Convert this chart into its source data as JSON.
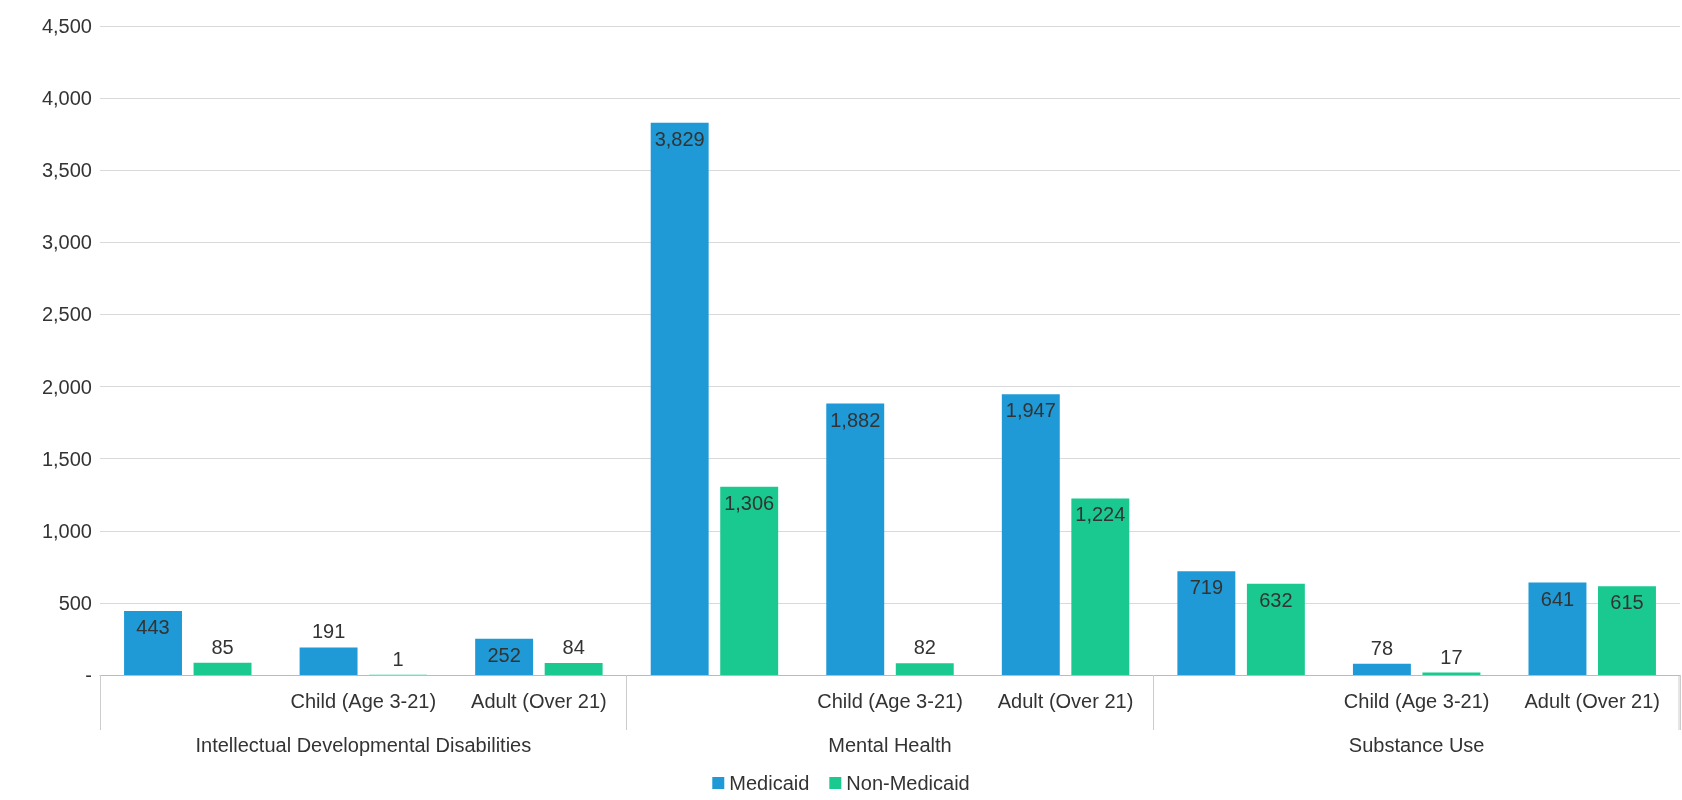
{
  "chart_data": {
    "type": "bar",
    "categories": [
      null,
      "Child (Age 3-21)",
      "Adult (Over 21)",
      null,
      "Child (Age 3-21)",
      "Adult (Over 21)",
      null,
      "Child (Age 3-21)",
      "Adult (Over 21)"
    ],
    "annotations": [
      "Intellectual Developmental Disabilities",
      "Mental Health",
      "Substance Use"
    ],
    "series": [
      {
        "name": "Medicaid",
        "color": "#1f9ad6",
        "values": [
          443,
          191,
          252,
          3829,
          1882,
          1947,
          719,
          78,
          641
        ],
        "value_labels": [
          "443",
          "191",
          "252",
          "3,829",
          "1,882",
          "1,947",
          "719",
          "78",
          "641"
        ]
      },
      {
        "name": "Non-Medicaid",
        "color": "#1ac98f",
        "values": [
          85,
          1,
          84,
          1306,
          82,
          1224,
          632,
          17,
          615
        ],
        "value_labels": [
          "85",
          "1",
          "84",
          "1,306",
          "82",
          "1,224",
          "632",
          "17",
          "615"
        ]
      }
    ],
    "ylim": [
      0,
      4500
    ],
    "yticks": [
      {
        "value": 0,
        "label": "-"
      },
      500,
      {
        "value": 1000,
        "label": "1,000"
      },
      {
        "value": 1500,
        "label": "1,500"
      },
      {
        "value": 2000,
        "label": "2,000"
      },
      {
        "value": 2500,
        "label": "2,500"
      },
      {
        "value": 3000,
        "label": "3,000"
      },
      {
        "value": 3500,
        "label": "3,500"
      },
      {
        "value": 4000,
        "label": "4,000"
      },
      {
        "value": 4500,
        "label": "4,500"
      }
    ],
    "grid": "y",
    "legend": "bottom"
  }
}
